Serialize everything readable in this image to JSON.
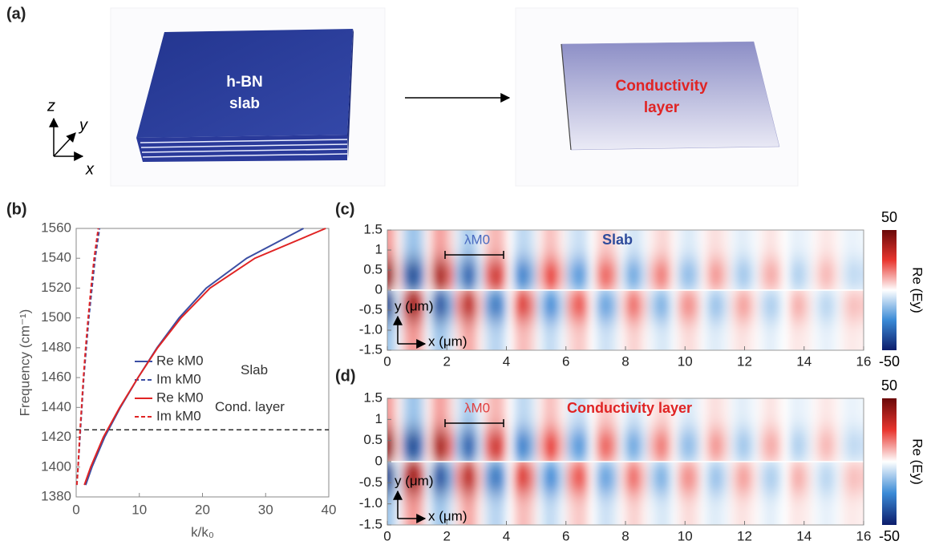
{
  "figure": {
    "panel_labels": [
      "(a)",
      "(b)",
      "(c)",
      "(d)"
    ]
  },
  "diagram": {
    "left_label": [
      "h-BN",
      "slab"
    ],
    "right_label": [
      "Conductivity",
      "layer"
    ],
    "axes": [
      "z",
      "y",
      "x"
    ]
  },
  "chart_data": [
    {
      "type": "line",
      "xlabel": "k/k₀",
      "ylabel": "Frequency (cm⁻¹)",
      "xlim": [
        0,
        40
      ],
      "ylim": [
        1380,
        1560
      ],
      "xticks": [
        0,
        10,
        20,
        30,
        40
      ],
      "yticks": [
        1380,
        1400,
        1420,
        1440,
        1460,
        1480,
        1500,
        1520,
        1540,
        1560
      ],
      "hline": 1425,
      "legend_groups": [
        "Slab",
        "Cond. layer"
      ],
      "series": [
        {
          "name": "Re kM0",
          "color": "#3b4ea3",
          "dash": false,
          "x": [
            1.5,
            2.5,
            4.5,
            7,
            9.8,
            12.8,
            16.3,
            20.6,
            27,
            36
          ],
          "values": [
            1388,
            1400,
            1420,
            1440,
            1460,
            1480,
            1500,
            1520,
            1540,
            1560
          ]
        },
        {
          "name": "Im kM0",
          "color": "#3b4ea3",
          "dash": true,
          "x": [
            0.1,
            0.3,
            0.6,
            0.9,
            1.2,
            1.6,
            2.0,
            2.5,
            3.0,
            3.7
          ],
          "values": [
            1388,
            1400,
            1420,
            1440,
            1460,
            1480,
            1500,
            1520,
            1540,
            1560
          ]
        },
        {
          "name": "Re kM0",
          "color": "#e02424",
          "dash": false,
          "x": [
            1.3,
            2.3,
            4.3,
            6.9,
            9.8,
            12.9,
            16.6,
            21.2,
            28.3,
            39.5
          ],
          "values": [
            1388,
            1400,
            1420,
            1440,
            1460,
            1480,
            1500,
            1520,
            1540,
            1560
          ]
        },
        {
          "name": "Im kM0",
          "color": "#e02424",
          "dash": true,
          "x": [
            0.1,
            0.3,
            0.55,
            0.85,
            1.15,
            1.5,
            1.9,
            2.35,
            2.85,
            3.5
          ],
          "values": [
            1388,
            1400,
            1420,
            1440,
            1460,
            1480,
            1500,
            1520,
            1540,
            1560
          ]
        }
      ]
    },
    {
      "type": "heatmap",
      "title": "Slab",
      "title_color": "#2e4b9b",
      "scale_label": "λM0",
      "scale_color": "#4a6bc0",
      "xlabel": "x (μm)",
      "ylabel": "y (μm)",
      "xlim": [
        0,
        16
      ],
      "ylim": [
        -1.5,
        1.5
      ],
      "xticks": [
        0,
        2,
        4,
        6,
        8,
        10,
        12,
        14,
        16
      ],
      "yticks": [
        1.5,
        1,
        0.5,
        0,
        -0.5,
        {
          "value": -1,
          "label": "-1.0"
        },
        -1.5
      ],
      "colorbar": {
        "label": "Re (Ey)",
        "lim": [
          -50,
          50
        ],
        "ticks": [
          50,
          -50
        ]
      },
      "colormap": [
        "#0c1c6b",
        "#3a8ad6",
        "#ffffff",
        "#e8352e",
        "#6a0808"
      ],
      "z": [
        [
          12,
          2,
          -9,
          -14,
          -9,
          2,
          11,
          12,
          5,
          -4,
          -11,
          -10,
          -2,
          6,
          10,
          7,
          0,
          -7,
          -9,
          -5,
          2,
          8,
          7,
          2,
          -4,
          -7,
          -6,
          0,
          5,
          7,
          4,
          -1,
          -5,
          -6,
          -2,
          2,
          5,
          5,
          1,
          -3,
          -5,
          -3,
          1,
          4,
          4,
          2,
          -2,
          -4,
          -3,
          -1,
          2,
          4,
          2,
          0,
          -3,
          -3,
          -2,
          1,
          3,
          3,
          1,
          -2,
          -3,
          -2
        ],
        [
          41,
          6,
          -31,
          -45,
          -29,
          5,
          35,
          39,
          18,
          -14,
          -35,
          -32,
          -7,
          20,
          33,
          23,
          -1,
          -24,
          -29,
          -15,
          8,
          25,
          24,
          8,
          -13,
          -24,
          -19,
          -1,
          16,
          22,
          13,
          -4,
          -18,
          -19,
          -7,
          8,
          18,
          15,
          2,
          -11,
          -16,
          -10,
          2,
          12,
          14,
          6,
          -5,
          -13,
          -11,
          -3,
          7,
          12,
          8,
          0,
          -9,
          -11,
          -5,
          3,
          9,
          9,
          3,
          -5,
          -9,
          -7
        ],
        [
          -41,
          -6,
          31,
          45,
          29,
          -5,
          -35,
          -39,
          -18,
          14,
          35,
          32,
          7,
          -20,
          -33,
          -23,
          1,
          24,
          29,
          15,
          -8,
          -25,
          -24,
          -8,
          13,
          24,
          19,
          1,
          -16,
          -22,
          -13,
          4,
          18,
          19,
          7,
          -8,
          -18,
          -15,
          -2,
          11,
          16,
          10,
          -2,
          -12,
          -14,
          -6,
          5,
          13,
          11,
          3,
          -7,
          -12,
          -8,
          0,
          9,
          11,
          5,
          -3,
          -9,
          -9,
          -3,
          5,
          9,
          7
        ],
        [
          -12,
          -2,
          9,
          14,
          9,
          -2,
          -11,
          -12,
          -5,
          4,
          11,
          10,
          2,
          -6,
          -10,
          -7,
          0,
          7,
          9,
          5,
          -2,
          -8,
          -7,
          -2,
          4,
          7,
          6,
          0,
          -5,
          -7,
          -4,
          1,
          5,
          6,
          2,
          -2,
          -5,
          -5,
          -1,
          3,
          5,
          3,
          -1,
          -4,
          -4,
          -2,
          2,
          4,
          3,
          1,
          -2,
          -4,
          -2,
          0,
          3,
          3,
          2,
          -1,
          -3,
          -3,
          -1,
          2,
          3,
          2
        ]
      ]
    },
    {
      "type": "heatmap",
      "title": "Conductivity layer",
      "title_color": "#e02424",
      "scale_label": "λM0",
      "scale_color": "#e04040",
      "xlabel": "x (μm)",
      "ylabel": "y (μm)",
      "xlim": [
        0,
        16
      ],
      "ylim": [
        -1.5,
        1.5
      ],
      "xticks": [
        0,
        2,
        4,
        6,
        8,
        10,
        12,
        14,
        16
      ],
      "yticks": [
        1.5,
        1,
        0.5,
        0,
        -0.5,
        {
          "value": -1,
          "label": "-1.0"
        },
        -1.5
      ],
      "colorbar": {
        "label": "Re (Ey)",
        "lim": [
          -50,
          50
        ],
        "ticks": [
          50,
          -50
        ]
      },
      "colormap": [
        "#0c1c6b",
        "#3a8ad6",
        "#ffffff",
        "#e8352e",
        "#6a0808"
      ],
      "z": [
        [
          12,
          2,
          -9,
          -14,
          -9,
          2,
          11,
          12,
          5,
          -4,
          -11,
          -10,
          -2,
          6,
          10,
          7,
          0,
          -7,
          -9,
          -5,
          2,
          8,
          7,
          2,
          -4,
          -7,
          -6,
          0,
          5,
          7,
          4,
          -1,
          -5,
          -6,
          -2,
          2,
          5,
          5,
          1,
          -3,
          -5,
          -3,
          1,
          4,
          4,
          2,
          -2,
          -4,
          -3,
          -1,
          2,
          4,
          2,
          0,
          -3,
          -3,
          -2,
          1,
          3,
          3,
          1,
          -2,
          -3,
          -2
        ],
        [
          41,
          6,
          -31,
          -45,
          -29,
          5,
          35,
          39,
          18,
          -14,
          -35,
          -32,
          -7,
          20,
          33,
          23,
          -1,
          -24,
          -29,
          -15,
          8,
          25,
          24,
          8,
          -13,
          -24,
          -19,
          -1,
          16,
          22,
          13,
          -4,
          -18,
          -19,
          -7,
          8,
          18,
          15,
          2,
          -11,
          -16,
          -10,
          2,
          12,
          14,
          6,
          -5,
          -13,
          -11,
          -3,
          7,
          12,
          8,
          0,
          -9,
          -11,
          -5,
          3,
          9,
          9,
          3,
          -5,
          -9,
          -7
        ],
        [
          -41,
          -6,
          31,
          45,
          29,
          -5,
          -35,
          -39,
          -18,
          14,
          35,
          32,
          7,
          -20,
          -33,
          -23,
          1,
          24,
          29,
          15,
          -8,
          -25,
          -24,
          -8,
          13,
          24,
          19,
          1,
          -16,
          -22,
          -13,
          4,
          18,
          19,
          7,
          -8,
          -18,
          -15,
          -2,
          11,
          16,
          10,
          -2,
          -12,
          -14,
          -6,
          5,
          13,
          11,
          3,
          -7,
          -12,
          -8,
          0,
          9,
          11,
          5,
          -3,
          -9,
          -9,
          -3,
          5,
          9,
          7
        ],
        [
          -12,
          -2,
          9,
          14,
          9,
          -2,
          -11,
          -12,
          -5,
          4,
          11,
          10,
          2,
          -6,
          -10,
          -7,
          0,
          7,
          9,
          5,
          -2,
          -8,
          -7,
          -2,
          4,
          7,
          6,
          0,
          -5,
          -7,
          -4,
          1,
          5,
          6,
          2,
          -2,
          -5,
          -5,
          -1,
          3,
          5,
          3,
          -1,
          -4,
          -4,
          -2,
          2,
          4,
          3,
          1,
          -2,
          -4,
          -2,
          0,
          3,
          3,
          2,
          -1,
          -3,
          -3,
          -1,
          2,
          3,
          2
        ]
      ]
    }
  ]
}
